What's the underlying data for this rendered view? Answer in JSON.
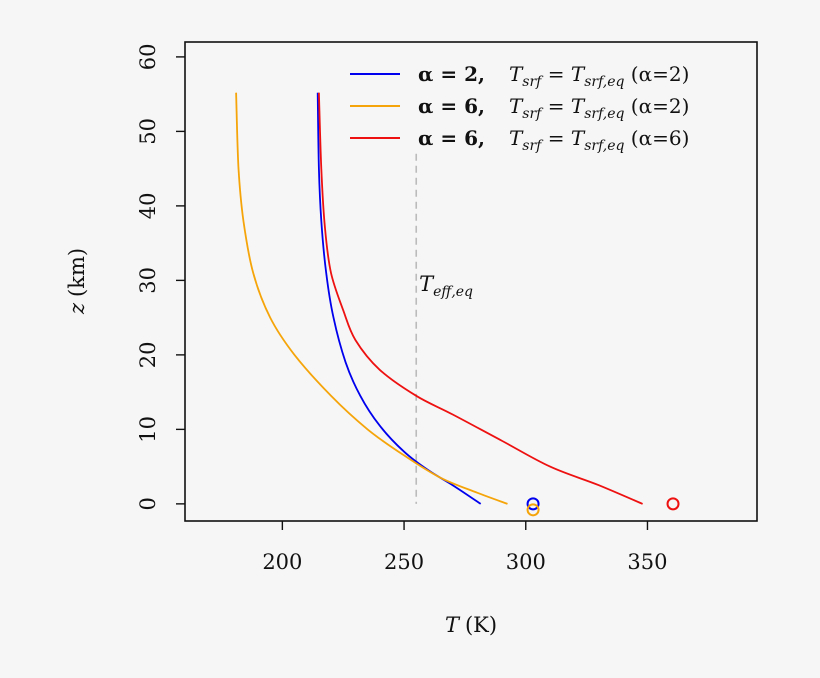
{
  "chart_data": {
    "type": "line",
    "xlabel": "T (K)",
    "ylabel": "z (km)",
    "xlim": [
      160,
      395
    ],
    "ylim": [
      -2.3,
      62
    ],
    "x_ticks": [
      200,
      250,
      300,
      350
    ],
    "y_ticks": [
      0,
      10,
      20,
      30,
      40,
      50,
      60
    ],
    "x_tick_labels": [
      "200",
      "250",
      "300",
      "350"
    ],
    "y_tick_labels": [
      "0",
      "10",
      "20",
      "30",
      "40",
      "50",
      "60"
    ],
    "grid": false,
    "legend_position": "top-right",
    "legend": [
      "α = 2,    T_srf = T_srf,eq (α=2)",
      "α = 6,    T_srf = T_srf,eq (α=2)",
      "α = 6,    T_srf = T_srf,eq (α=6)"
    ],
    "series": [
      {
        "color": "#0000ee",
        "points": [
          [
            281.5,
            0
          ],
          [
            270,
            2.5
          ],
          [
            260,
            4.5
          ],
          [
            250,
            7
          ],
          [
            240,
            10.5
          ],
          [
            232,
            14.5
          ],
          [
            226,
            19
          ],
          [
            221,
            25
          ],
          [
            218,
            31
          ],
          [
            216,
            38
          ],
          [
            215,
            45
          ],
          [
            214.5,
            55.2
          ]
        ],
        "surface_marker": [
          303,
          0
        ]
      },
      {
        "color": "#f5a50a",
        "points": [
          [
            292.5,
            0
          ],
          [
            280,
            1.5
          ],
          [
            265,
            3.5
          ],
          [
            250,
            6.5
          ],
          [
            235,
            10
          ],
          [
            220,
            14.5
          ],
          [
            205,
            20
          ],
          [
            195,
            25
          ],
          [
            188,
            31
          ],
          [
            184,
            38
          ],
          [
            182,
            45
          ],
          [
            181,
            55.2
          ]
        ],
        "surface_marker": [
          303,
          -0.8
        ]
      },
      {
        "color": "#ee1111",
        "points": [
          [
            348,
            0
          ],
          [
            330,
            2.5
          ],
          [
            310,
            5
          ],
          [
            290,
            8.5
          ],
          [
            270,
            12
          ],
          [
            255,
            14.5
          ],
          [
            240,
            18
          ],
          [
            230,
            22
          ],
          [
            225,
            26
          ],
          [
            220,
            31
          ],
          [
            217.5,
            37
          ],
          [
            216,
            45
          ],
          [
            215,
            55.2
          ]
        ],
        "surface_marker": [
          360.5,
          0
        ]
      }
    ],
    "reference_line": {
      "x": 255,
      "y_range": [
        0,
        47
      ],
      "color": "#bbbbbb",
      "dashed": true
    },
    "annotation": {
      "text": "T_eff,eq",
      "x": 257,
      "y": 29.5
    }
  }
}
